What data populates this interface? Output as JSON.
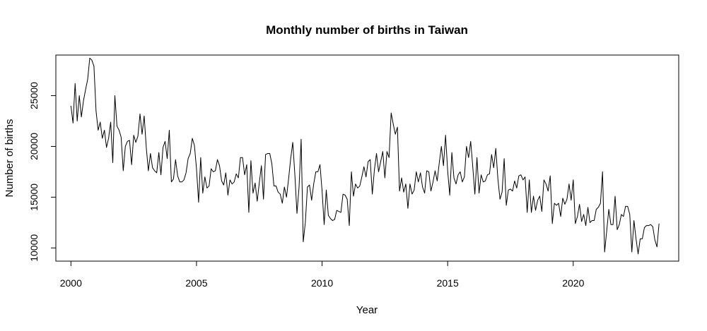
{
  "chart_data": {
    "type": "line",
    "title": "Monthly number of births in Taiwan",
    "xlabel": "Year",
    "ylabel": "Number of births",
    "xlim": [
      1999.4,
      2024.2
    ],
    "ylim": [
      8700,
      29000
    ],
    "x_ticks": [
      2000,
      2005,
      2010,
      2015,
      2020
    ],
    "x_tick_labels": [
      "2000",
      "2005",
      "2010",
      "2015",
      "2020"
    ],
    "y_ticks": [
      10000,
      15000,
      20000,
      25000
    ],
    "y_tick_labels": [
      "10000",
      "15000",
      "20000",
      "25000"
    ],
    "grid": false,
    "legend": "none",
    "start": "2000-01",
    "frequency": "monthly",
    "series": [
      {
        "values": [
          24000,
          22300,
          26200,
          22500,
          25000,
          22900,
          24500,
          25600,
          26600,
          28700,
          28500,
          27900,
          23500,
          21600,
          22400,
          20800,
          21600,
          19900,
          20800,
          22400,
          18400,
          25000,
          22000,
          21600,
          20900,
          17600,
          20000,
          20500,
          20600,
          18200,
          21100,
          20400,
          21000,
          23200,
          21200,
          23000,
          19900,
          17600,
          19300,
          17900,
          17600,
          17400,
          19400,
          17200,
          19900,
          20500,
          18800,
          21600,
          16500,
          16800,
          18700,
          17100,
          16500,
          16500,
          16700,
          17400,
          18800,
          19300,
          20800,
          20100,
          17800,
          14500,
          18900,
          15400,
          17000,
          15900,
          16100,
          17800,
          17500,
          17600,
          18700,
          18100,
          16600,
          16200,
          17400,
          15200,
          16700,
          16300,
          16500,
          17300,
          16900,
          18900,
          18900,
          17200,
          18200,
          13500,
          18600,
          15400,
          16400,
          14600,
          16400,
          18100,
          14800,
          19200,
          19300,
          19300,
          18300,
          16100,
          16100,
          15500,
          15300,
          14400,
          16000,
          15000,
          16800,
          18800,
          20400,
          17200,
          13400,
          16000,
          20700,
          10600,
          12500,
          16000,
          16200,
          14700,
          16300,
          17500,
          17500,
          18200,
          15600,
          12300,
          15700,
          13200,
          12900,
          12700,
          12800,
          13700,
          13600,
          13500,
          15300,
          15200,
          14800,
          12200,
          17500,
          15100,
          16300,
          15900,
          16100,
          17000,
          18000,
          17000,
          18500,
          18700,
          15300,
          17700,
          19300,
          17500,
          18500,
          19500,
          16900,
          19500,
          18900,
          23300,
          22200,
          21200,
          21900,
          15600,
          16900,
          15500,
          16300,
          13900,
          16300,
          15300,
          15700,
          17500,
          16500,
          17400,
          16000,
          15400,
          17600,
          17500,
          15600,
          16500,
          17600,
          16600,
          18400,
          20000,
          18100,
          21100,
          17600,
          15200,
          19400,
          16900,
          16300,
          17200,
          17500,
          16500,
          17000,
          20000,
          18900,
          20500,
          18000,
          15300,
          18900,
          15400,
          17200,
          16500,
          16600,
          17200,
          17300,
          19200,
          17900,
          19800,
          16800,
          14800,
          15500,
          18800,
          14200,
          15700,
          15800,
          15600,
          16600,
          15900,
          17100,
          17200,
          16700,
          17000,
          13500,
          16700,
          13500,
          15100,
          13700,
          14700,
          15100,
          13600,
          16700,
          16300,
          15600,
          17100,
          12400,
          14400,
          14200,
          14400,
          13100,
          14900,
          14300,
          14800,
          16300,
          14700,
          16700,
          12400,
          13100,
          14300,
          12600,
          13300,
          12200,
          14000,
          12500,
          12700,
          12700,
          13800,
          14000,
          14400,
          17500,
          9600,
          11700,
          13800,
          12300,
          12300,
          15100,
          11800,
          12300,
          13300,
          13100,
          14100,
          14100,
          13300,
          9600,
          12700,
          10900,
          9400,
          10900,
          10900,
          12000,
          12200,
          12200,
          12300,
          12100,
          10800,
          10100,
          12400
        ]
      }
    ]
  }
}
